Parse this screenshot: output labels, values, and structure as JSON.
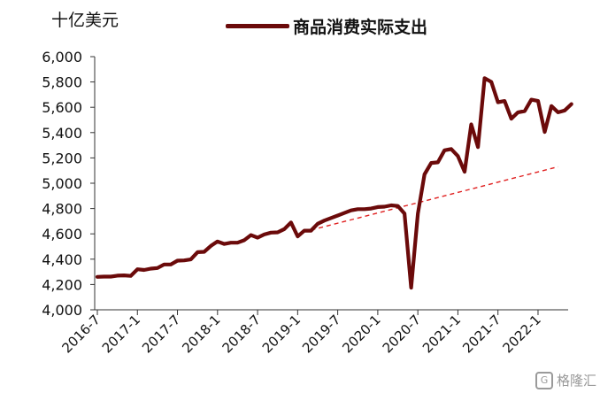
{
  "watermark": "格隆汇",
  "chart_data": {
    "type": "line",
    "title": "",
    "unit_label": "十亿美元",
    "yticks": [
      "4,000",
      "4,200",
      "4,400",
      "4,600",
      "4,800",
      "5,000",
      "5,200",
      "5,400",
      "5,600",
      "5,800",
      "6,000"
    ],
    "ylim": [
      4000,
      6000
    ],
    "xticks": [
      "2016-7",
      "2017-1",
      "2017-7",
      "2018-1",
      "2018-7",
      "2019-1",
      "2019-7",
      "2020-1",
      "2020-7",
      "2021-1",
      "2021-7",
      "2022-1"
    ],
    "colors": {
      "series": "#6b0a0a",
      "trend": "#e02020",
      "axis": "#333333"
    },
    "series": [
      {
        "name": "商品消费实际支出",
        "start": "2016-7",
        "values": [
          4260,
          4262,
          4262,
          4270,
          4272,
          4268,
          4320,
          4315,
          4325,
          4330,
          4358,
          4358,
          4388,
          4390,
          4398,
          4455,
          4458,
          4505,
          4540,
          4520,
          4530,
          4530,
          4550,
          4590,
          4570,
          4595,
          4610,
          4612,
          4638,
          4690,
          4580,
          4625,
          4625,
          4680,
          4705,
          4725,
          4745,
          4765,
          4785,
          4795,
          4795,
          4800,
          4812,
          4815,
          4825,
          4820,
          4760,
          4175,
          4760,
          5070,
          5160,
          5165,
          5260,
          5270,
          5215,
          5090,
          5465,
          5285,
          5830,
          5800,
          5640,
          5650,
          5510,
          5560,
          5570,
          5660,
          5650,
          5405,
          5610,
          5560,
          5575,
          5625
        ]
      }
    ],
    "trend": {
      "style": "dashed",
      "from": {
        "x": "2019-3",
        "y": 4630
      },
      "to": {
        "x": "2022-4",
        "y": 5130
      }
    }
  }
}
